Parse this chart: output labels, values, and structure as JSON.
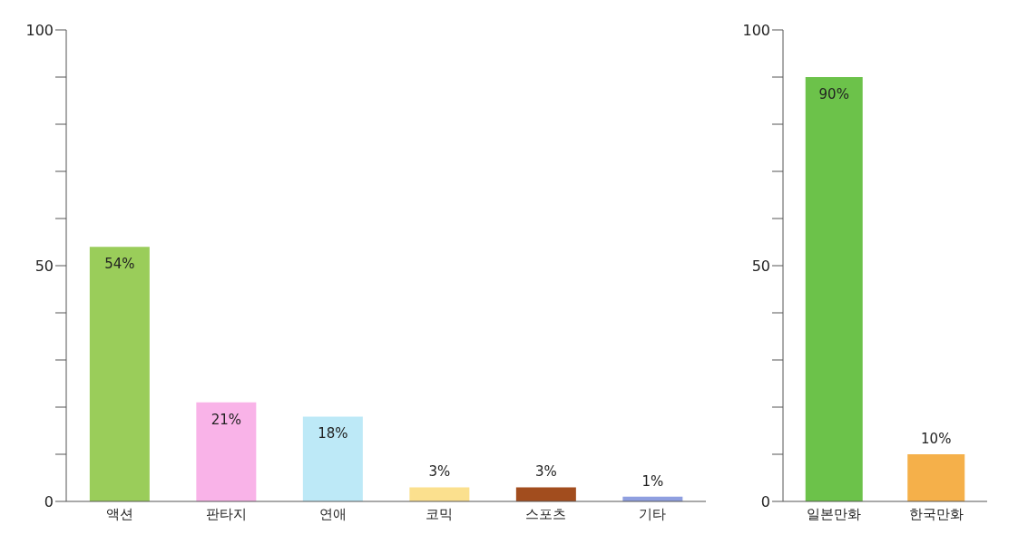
{
  "chart_data": [
    {
      "type": "bar",
      "categories": [
        "액션",
        "판타지",
        "연애",
        "코믹",
        "스포츠",
        "기타"
      ],
      "values": [
        54,
        21,
        18,
        3,
        3,
        1
      ],
      "colors": [
        "#9acd5a",
        "#f9b3e8",
        "#bde9f7",
        "#fbe08e",
        "#a24d1e",
        "#8f9fe0"
      ],
      "value_labels": [
        "54%",
        "21%",
        "18%",
        "3%",
        "3%",
        "1%"
      ],
      "ylim": [
        0,
        100
      ],
      "yticks": [
        0,
        {
          "value": 10,
          "label": null
        },
        {
          "value": 20,
          "label": null
        },
        {
          "value": 30,
          "label": null
        },
        {
          "value": 40,
          "label": null
        },
        50,
        {
          "value": 60,
          "label": null
        },
        {
          "value": 70,
          "label": null
        },
        {
          "value": 80,
          "label": null
        },
        {
          "value": 90,
          "label": null
        },
        100
      ],
      "grid": false
    },
    {
      "type": "bar",
      "categories": [
        "일본만화",
        "한국만화"
      ],
      "values": [
        90,
        10
      ],
      "colors": [
        "#6cc24a",
        "#f5b04a"
      ],
      "value_labels": [
        "90%",
        "10%"
      ],
      "ylim": [
        0,
        100
      ],
      "yticks": [
        0,
        {
          "value": 10,
          "label": null
        },
        {
          "value": 20,
          "label": null
        },
        {
          "value": 30,
          "label": null
        },
        {
          "value": 40,
          "label": null
        },
        50,
        {
          "value": 60,
          "label": null
        },
        {
          "value": 70,
          "label": null
        },
        {
          "value": 80,
          "label": null
        },
        {
          "value": 90,
          "label": null
        },
        100
      ],
      "grid": false
    }
  ]
}
